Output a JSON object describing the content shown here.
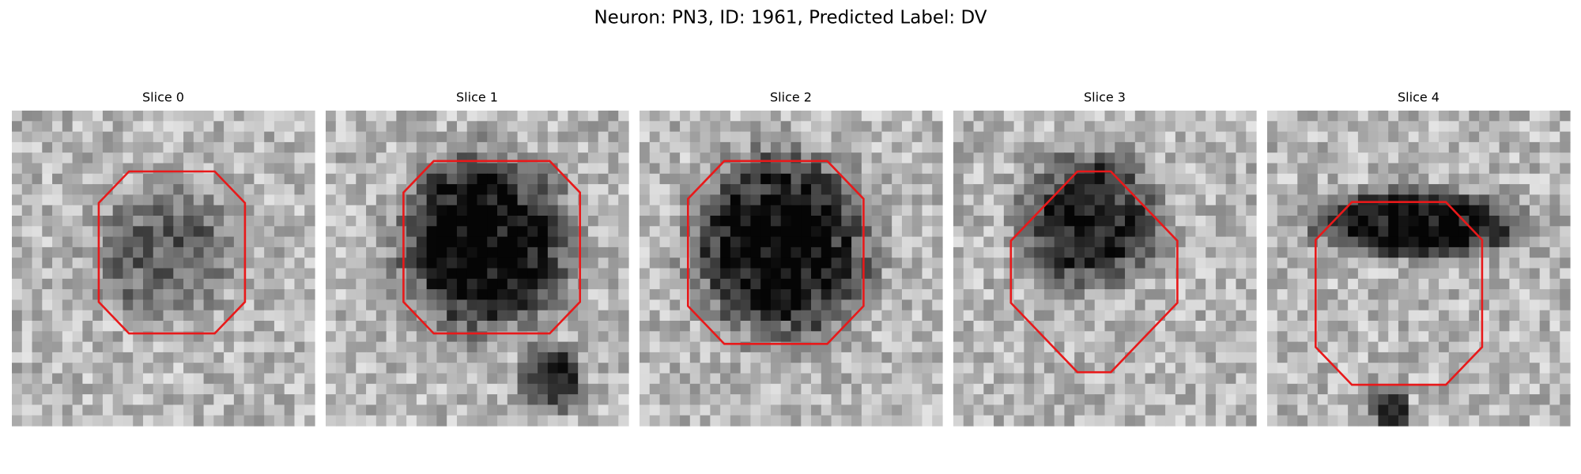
{
  "title": "Neuron: PN3, ID: 1961, Predicted Label: DV",
  "panels": [
    {
      "title": "Slice 0"
    },
    {
      "title": "Slice 1"
    },
    {
      "title": "Slice 2"
    },
    {
      "title": "Slice 3"
    },
    {
      "title": "Slice 4"
    }
  ]
}
